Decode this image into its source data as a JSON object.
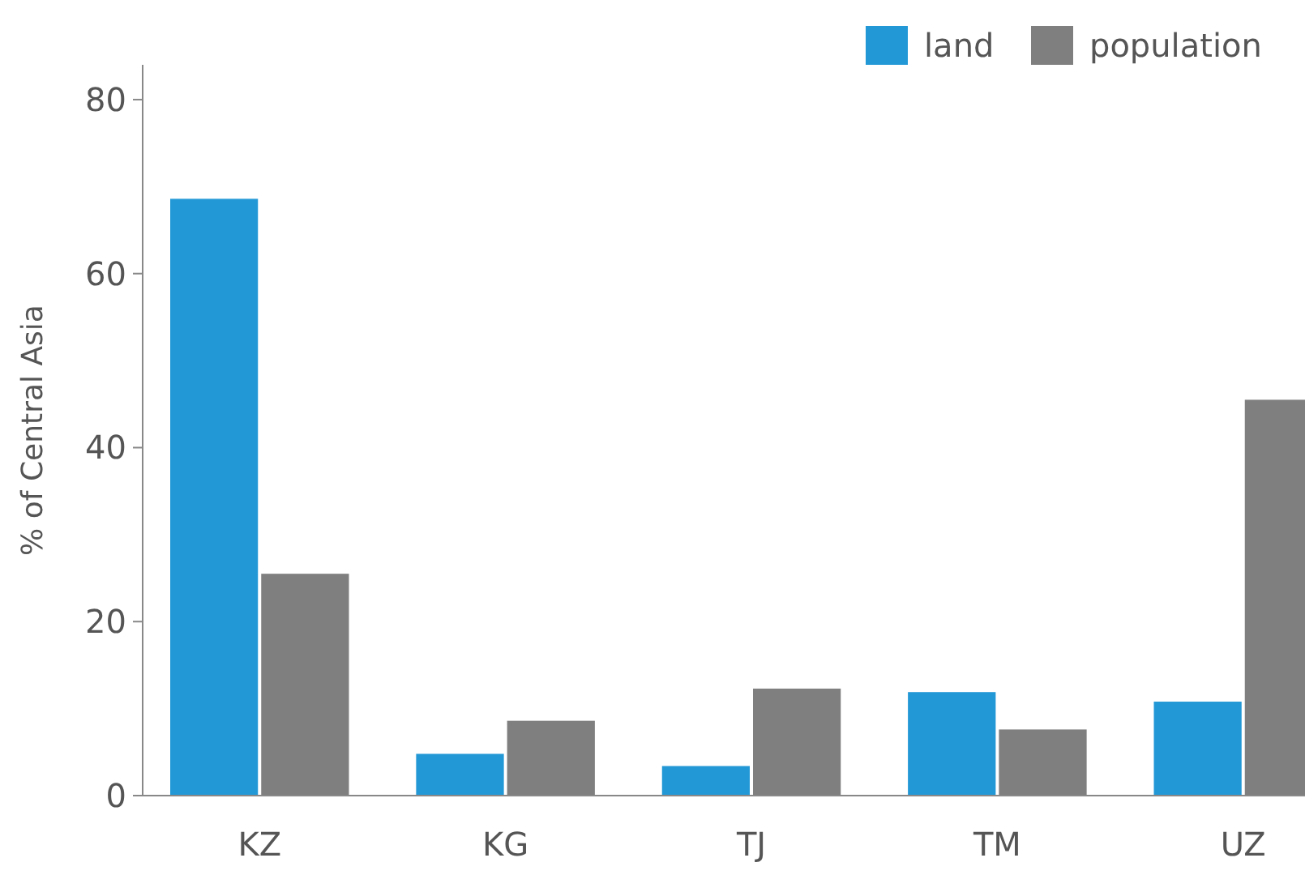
{
  "chart_data": {
    "type": "bar",
    "ylabel": "% of Central Asia",
    "categories": [
      "KZ",
      "KG",
      "TJ",
      "TM",
      "UZ"
    ],
    "series": [
      {
        "name": "land",
        "color": "#2398d6",
        "values": [
          68.6,
          4.8,
          3.4,
          11.9,
          10.8
        ]
      },
      {
        "name": "population",
        "color": "#7f7f80",
        "values": [
          25.5,
          8.6,
          12.3,
          7.6,
          45.5
        ]
      }
    ],
    "ylim": [
      0,
      84
    ],
    "yticks": [
      0,
      20,
      40,
      60,
      80
    ],
    "grid": false,
    "legend": "top right"
  }
}
